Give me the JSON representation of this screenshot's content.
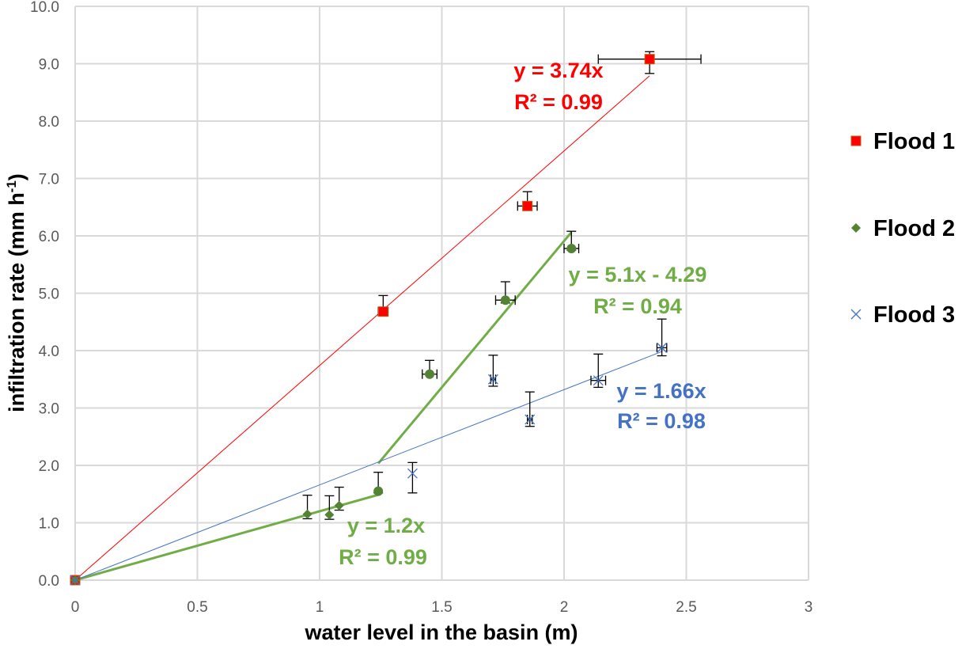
{
  "chart_data": {
    "type": "scatter",
    "xlabel": "water level in the basin (m)",
    "ylabel": "infiltration rate  (mm h",
    "ylabel_sup": "-1",
    "ylabel_end": ")",
    "xlim": [
      0,
      3
    ],
    "ylim": [
      0,
      10
    ],
    "xticks": [
      0,
      0.5,
      1,
      1.5,
      2,
      2.5,
      3
    ],
    "xtick_labels": [
      "0",
      "0.5",
      "1",
      "1.5",
      "2",
      "2.5",
      "3"
    ],
    "yticks": [
      0,
      1,
      2,
      3,
      4,
      5,
      6,
      7,
      8,
      9,
      10
    ],
    "ytick_labels": [
      "0.0",
      "1.0",
      "2.0",
      "3.0",
      "4.0",
      "5.0",
      "6.0",
      "7.0",
      "8.0",
      "9.0",
      "10.0"
    ],
    "grid": true,
    "legend_position": "right",
    "series": [
      {
        "name": "Flood 1",
        "color": "#ff0000",
        "marker": "square",
        "points": [
          {
            "x": 0,
            "y": 0,
            "yerr": [
              0,
              0
            ],
            "xerr": 0
          },
          {
            "x": 1.26,
            "y": 4.68,
            "yerr": [
              0,
              0.28
            ],
            "xerr": 0.02
          },
          {
            "x": 1.85,
            "y": 6.52,
            "yerr": [
              0,
              0.25
            ],
            "xerr": 0.04
          },
          {
            "x": 2.35,
            "y": 9.08,
            "yerr": [
              0.25,
              0.13
            ],
            "xerr": 0.21
          }
        ],
        "trendlines": [
          {
            "slope": 3.74,
            "intercept": 0,
            "x_range": [
              0,
              2.35
            ],
            "width": 1,
            "equation": "y = 3.74x",
            "r2": "R² = 0.99"
          }
        ]
      },
      {
        "name": "Flood 2",
        "color": "#548235",
        "marker": "diamond",
        "points": [
          {
            "x": 0,
            "y": 0,
            "yerr": [
              0,
              0
            ],
            "xerr": 0,
            "marker": "diamond"
          },
          {
            "x": 0.95,
            "y": 1.15,
            "yerr": [
              0.08,
              0.33
            ],
            "xerr": 0,
            "marker": "diamond"
          },
          {
            "x": 1.04,
            "y": 1.14,
            "yerr": [
              0.08,
              0.33
            ],
            "xerr": 0,
            "marker": "diamond"
          },
          {
            "x": 1.08,
            "y": 1.3,
            "yerr": [
              0.08,
              0.32
            ],
            "xerr": 0,
            "marker": "diamond"
          },
          {
            "x": 1.24,
            "y": 1.55,
            "yerr": [
              0.03,
              0.33
            ],
            "xerr": 0,
            "marker": "circle"
          },
          {
            "x": 1.45,
            "y": 3.59,
            "yerr": [
              0,
              0.24
            ],
            "xerr": 0.03,
            "marker": "circle"
          },
          {
            "x": 1.76,
            "y": 4.88,
            "yerr": [
              0.05,
              0.32
            ],
            "xerr": 0.04,
            "marker": "circle"
          },
          {
            "x": 2.03,
            "y": 5.78,
            "yerr": [
              0.03,
              0.3
            ],
            "xerr": 0.03,
            "marker": "circle"
          }
        ],
        "trendlines": [
          {
            "slope": 1.2,
            "intercept": 0,
            "x_range": [
              0,
              1.24
            ],
            "width": 3,
            "equation": "y = 1.2x",
            "r2": "R² = 0.99"
          },
          {
            "slope": 5.1,
            "intercept": -4.29,
            "x_range": [
              1.24,
              2.03
            ],
            "width": 3,
            "equation": "y = 5.1x - 4.29",
            "r2": "R² = 0.94"
          }
        ]
      },
      {
        "name": "Flood 3",
        "color": "#4472c4",
        "marker": "x",
        "points": [
          {
            "x": 0,
            "y": 0,
            "yerr": [
              0,
              0
            ],
            "xerr": 0
          },
          {
            "x": 1.38,
            "y": 1.86,
            "yerr": [
              0.34,
              0.19
            ],
            "xerr": 0
          },
          {
            "x": 1.71,
            "y": 3.5,
            "yerr": [
              0.12,
              0.42
            ],
            "xerr": 0.01
          },
          {
            "x": 1.86,
            "y": 2.8,
            "yerr": [
              0.12,
              0.48
            ],
            "xerr": 0.01
          },
          {
            "x": 2.14,
            "y": 3.48,
            "yerr": [
              0.12,
              0.46
            ],
            "xerr": 0.03
          },
          {
            "x": 2.4,
            "y": 4.05,
            "yerr": [
              0.14,
              0.5
            ],
            "xerr": 0.02
          }
        ],
        "trendlines": [
          {
            "slope": 1.66,
            "intercept": 0,
            "x_range": [
              0,
              2.4
            ],
            "width": 1,
            "equation": "y = 1.66x",
            "r2": "R² = 0.98"
          }
        ]
      }
    ]
  }
}
